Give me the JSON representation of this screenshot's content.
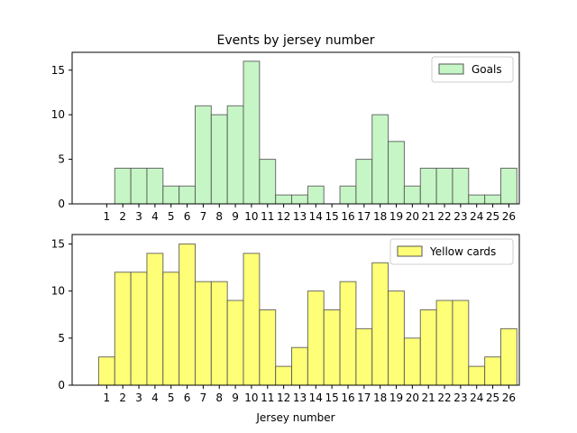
{
  "chart_data": [
    {
      "type": "bar",
      "title": "Events by jersey number",
      "xlabel": "",
      "ylabel": "",
      "x": [
        1,
        2,
        3,
        4,
        5,
        6,
        7,
        8,
        9,
        10,
        11,
        12,
        13,
        14,
        15,
        16,
        17,
        18,
        19,
        20,
        21,
        22,
        23,
        24,
        25,
        26
      ],
      "xtick_labels": [
        "1",
        "2",
        "3",
        "4",
        "5",
        "6",
        "7",
        "8",
        "9",
        "10",
        "11",
        "12",
        "13",
        "14",
        "15",
        "16",
        "17",
        "18",
        "19",
        "20",
        "21",
        "22",
        "23",
        "24",
        "25",
        "26"
      ],
      "series": [
        {
          "name": "Goals",
          "color": "#c6f5c6",
          "values": [
            0,
            4,
            4,
            4,
            2,
            2,
            11,
            10,
            11,
            16,
            5,
            1,
            1,
            2,
            0,
            2,
            5,
            10,
            7,
            2,
            4,
            4,
            4,
            1,
            1,
            4
          ]
        }
      ],
      "ylim": [
        0,
        17
      ],
      "yticks": [
        0,
        5,
        10,
        15
      ],
      "grid": false,
      "legend_position": "top-right"
    },
    {
      "type": "bar",
      "title": "",
      "xlabel": "Jersey number",
      "ylabel": "",
      "x": [
        1,
        2,
        3,
        4,
        5,
        6,
        7,
        8,
        9,
        10,
        11,
        12,
        13,
        14,
        15,
        16,
        17,
        18,
        19,
        20,
        21,
        22,
        23,
        24,
        25,
        26
      ],
      "xtick_labels": [
        "1",
        "2",
        "3",
        "4",
        "5",
        "6",
        "7",
        "8",
        "9",
        "10",
        "11",
        "12",
        "13",
        "14",
        "15",
        "16",
        "17",
        "18",
        "19",
        "20",
        "21",
        "22",
        "23",
        "24",
        "25",
        "26"
      ],
      "series": [
        {
          "name": "Yellow cards",
          "color": "#ffff77",
          "values": [
            3,
            12,
            12,
            14,
            12,
            15,
            11,
            11,
            9,
            14,
            8,
            2,
            4,
            10,
            8,
            11,
            6,
            13,
            10,
            5,
            8,
            9,
            9,
            2,
            3,
            6
          ]
        }
      ],
      "ylim": [
        0,
        16
      ],
      "yticks": [
        0,
        5,
        10,
        15
      ],
      "grid": false,
      "legend_position": "top-right"
    }
  ]
}
